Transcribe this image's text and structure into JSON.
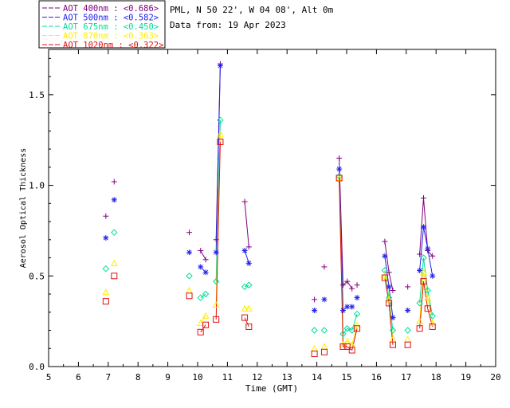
{
  "chart_data": {
    "type": "scatter",
    "title": "PML, N 50 22', W 04 08', Alt 0m",
    "subtitle": "Data from: 19 Apr 2023",
    "xlabel": "Time (GMT)",
    "ylabel": "Aerosol Optical Thickness",
    "xlim": [
      5,
      20
    ],
    "ylim": [
      0,
      1.75
    ],
    "xticks": [
      5,
      6,
      7,
      8,
      9,
      10,
      11,
      12,
      13,
      14,
      15,
      16,
      17,
      18,
      19,
      20
    ],
    "xtick_labels": [
      "5",
      "6",
      "7",
      "8",
      "9",
      "10",
      "11",
      "12",
      "13",
      "14",
      "15",
      "16",
      "17",
      "18",
      "19",
      "20"
    ],
    "yticks": [
      0,
      0.5,
      1.0,
      1.5
    ],
    "ytick_labels": [
      "0.0",
      "0.5",
      "1.0",
      "1.5"
    ],
    "legend_position": "top-left (outside plot)",
    "series": [
      {
        "name": "AOT  400nm : <0.686>",
        "color": "#800080",
        "marker": "plus",
        "points": [
          [
            6.92,
            0.83
          ],
          [
            7.2,
            1.02
          ],
          [
            9.72,
            0.74
          ],
          [
            10.1,
            0.64
          ],
          [
            10.27,
            0.59
          ],
          [
            10.62,
            0.7
          ],
          [
            10.76,
            1.67
          ],
          [
            11.58,
            0.91
          ],
          [
            11.72,
            0.66
          ],
          [
            13.92,
            0.37
          ],
          [
            14.25,
            0.55
          ],
          [
            14.75,
            1.15
          ],
          [
            14.88,
            0.45
          ],
          [
            15.02,
            0.47
          ],
          [
            15.18,
            0.43
          ],
          [
            15.35,
            0.45
          ],
          [
            16.28,
            0.69
          ],
          [
            16.42,
            0.52
          ],
          [
            16.55,
            0.42
          ],
          [
            17.05,
            0.44
          ],
          [
            17.45,
            0.62
          ],
          [
            17.58,
            0.93
          ],
          [
            17.72,
            0.64
          ],
          [
            17.88,
            0.61
          ]
        ],
        "segments": [
          [
            [
              10.1,
              0.64
            ],
            [
              10.27,
              0.59
            ]
          ],
          [
            [
              10.62,
              0.7
            ],
            [
              10.76,
              1.67
            ]
          ],
          [
            [
              11.58,
              0.91
            ],
            [
              11.72,
              0.66
            ]
          ],
          [
            [
              14.75,
              1.15
            ],
            [
              14.88,
              0.45
            ]
          ],
          [
            [
              14.88,
              0.45
            ],
            [
              15.02,
              0.47
            ]
          ],
          [
            [
              15.02,
              0.47
            ],
            [
              15.18,
              0.43
            ]
          ],
          [
            [
              16.28,
              0.69
            ],
            [
              16.42,
              0.52
            ]
          ],
          [
            [
              16.42,
              0.52
            ],
            [
              16.55,
              0.42
            ]
          ],
          [
            [
              17.45,
              0.62
            ],
            [
              17.58,
              0.93
            ]
          ],
          [
            [
              17.58,
              0.93
            ],
            [
              17.72,
              0.64
            ]
          ],
          [
            [
              17.72,
              0.64
            ],
            [
              17.88,
              0.61
            ]
          ]
        ]
      },
      {
        "name": "AOT  500nm : <0.582>",
        "color": "#2222ee",
        "marker": "asterisk",
        "points": [
          [
            6.92,
            0.71
          ],
          [
            7.2,
            0.92
          ],
          [
            9.72,
            0.63
          ],
          [
            10.1,
            0.55
          ],
          [
            10.27,
            0.52
          ],
          [
            10.62,
            0.63
          ],
          [
            10.76,
            1.66
          ],
          [
            11.58,
            0.64
          ],
          [
            11.72,
            0.57
          ],
          [
            13.92,
            0.31
          ],
          [
            14.25,
            0.37
          ],
          [
            14.75,
            1.09
          ],
          [
            14.88,
            0.31
          ],
          [
            15.02,
            0.33
          ],
          [
            15.18,
            0.33
          ],
          [
            15.35,
            0.38
          ],
          [
            16.28,
            0.61
          ],
          [
            16.42,
            0.44
          ],
          [
            16.55,
            0.27
          ],
          [
            17.05,
            0.31
          ],
          [
            17.45,
            0.53
          ],
          [
            17.58,
            0.77
          ],
          [
            17.72,
            0.65
          ],
          [
            17.88,
            0.5
          ]
        ],
        "segments": [
          [
            [
              10.1,
              0.55
            ],
            [
              10.27,
              0.52
            ]
          ],
          [
            [
              10.62,
              0.63
            ],
            [
              10.76,
              1.66
            ]
          ],
          [
            [
              11.58,
              0.64
            ],
            [
              11.72,
              0.57
            ]
          ],
          [
            [
              14.75,
              1.09
            ],
            [
              14.88,
              0.31
            ]
          ],
          [
            [
              14.88,
              0.31
            ],
            [
              15.02,
              0.33
            ]
          ],
          [
            [
              15.02,
              0.33
            ],
            [
              15.18,
              0.33
            ]
          ],
          [
            [
              16.28,
              0.61
            ],
            [
              16.42,
              0.44
            ]
          ],
          [
            [
              16.42,
              0.44
            ],
            [
              16.55,
              0.27
            ]
          ],
          [
            [
              17.45,
              0.53
            ],
            [
              17.58,
              0.77
            ]
          ],
          [
            [
              17.58,
              0.77
            ],
            [
              17.72,
              0.65
            ]
          ],
          [
            [
              17.72,
              0.65
            ],
            [
              17.88,
              0.5
            ]
          ]
        ]
      },
      {
        "name": "AOT  675nm : <0.450>",
        "color": "#00dd99",
        "marker": "diamond",
        "points": [
          [
            6.92,
            0.54
          ],
          [
            7.2,
            0.74
          ],
          [
            9.72,
            0.5
          ],
          [
            10.1,
            0.38
          ],
          [
            10.27,
            0.4
          ],
          [
            10.62,
            0.47
          ],
          [
            10.76,
            1.36
          ],
          [
            11.58,
            0.44
          ],
          [
            11.72,
            0.45
          ],
          [
            13.92,
            0.2
          ],
          [
            14.25,
            0.2
          ],
          [
            14.75,
            1.05
          ],
          [
            14.88,
            0.18
          ],
          [
            15.02,
            0.21
          ],
          [
            15.18,
            0.2
          ],
          [
            15.35,
            0.29
          ],
          [
            16.28,
            0.53
          ],
          [
            16.42,
            0.38
          ],
          [
            16.55,
            0.2
          ],
          [
            17.05,
            0.2
          ],
          [
            17.45,
            0.35
          ],
          [
            17.58,
            0.6
          ],
          [
            17.72,
            0.42
          ],
          [
            17.88,
            0.28
          ]
        ],
        "segments": [
          [
            [
              10.1,
              0.38
            ],
            [
              10.27,
              0.4
            ]
          ],
          [
            [
              10.62,
              0.47
            ],
            [
              10.76,
              1.36
            ]
          ],
          [
            [
              11.58,
              0.44
            ],
            [
              11.72,
              0.45
            ]
          ],
          [
            [
              14.75,
              1.05
            ],
            [
              14.88,
              0.18
            ]
          ],
          [
            [
              14.88,
              0.18
            ],
            [
              15.02,
              0.21
            ]
          ],
          [
            [
              15.02,
              0.21
            ],
            [
              15.18,
              0.2
            ]
          ],
          [
            [
              15.18,
              0.2
            ],
            [
              15.35,
              0.29
            ]
          ],
          [
            [
              16.28,
              0.53
            ],
            [
              16.42,
              0.38
            ]
          ],
          [
            [
              16.42,
              0.38
            ],
            [
              16.55,
              0.2
            ]
          ],
          [
            [
              17.45,
              0.35
            ],
            [
              17.58,
              0.6
            ]
          ],
          [
            [
              17.58,
              0.6
            ],
            [
              17.72,
              0.42
            ]
          ],
          [
            [
              17.72,
              0.42
            ],
            [
              17.88,
              0.28
            ]
          ]
        ]
      },
      {
        "name": "AOT  870nm : <0.363>",
        "color": "#ffee00",
        "marker": "triangle",
        "points": [
          [
            6.92,
            0.41
          ],
          [
            7.2,
            0.57
          ],
          [
            9.72,
            0.42
          ],
          [
            10.1,
            0.24
          ],
          [
            10.27,
            0.28
          ],
          [
            10.62,
            0.34
          ],
          [
            10.76,
            1.28
          ],
          [
            11.58,
            0.32
          ],
          [
            11.72,
            0.32
          ],
          [
            13.92,
            0.1
          ],
          [
            14.25,
            0.11
          ],
          [
            14.75,
            1.04
          ],
          [
            14.88,
            0.12
          ],
          [
            15.02,
            0.14
          ],
          [
            15.18,
            0.12
          ],
          [
            15.35,
            0.23
          ],
          [
            16.28,
            0.5
          ],
          [
            16.42,
            0.37
          ],
          [
            16.55,
            0.15
          ],
          [
            17.05,
            0.15
          ],
          [
            17.45,
            0.25
          ],
          [
            17.58,
            0.52
          ],
          [
            17.72,
            0.38
          ],
          [
            17.88,
            0.24
          ]
        ],
        "segments": [
          [
            [
              10.1,
              0.24
            ],
            [
              10.27,
              0.28
            ]
          ],
          [
            [
              10.62,
              0.34
            ],
            [
              10.76,
              1.28
            ]
          ],
          [
            [
              11.58,
              0.32
            ],
            [
              11.72,
              0.32
            ]
          ],
          [
            [
              14.75,
              1.04
            ],
            [
              14.88,
              0.12
            ]
          ],
          [
            [
              14.88,
              0.12
            ],
            [
              15.02,
              0.14
            ]
          ],
          [
            [
              15.02,
              0.14
            ],
            [
              15.18,
              0.12
            ]
          ],
          [
            [
              15.18,
              0.12
            ],
            [
              15.35,
              0.23
            ]
          ],
          [
            [
              16.28,
              0.5
            ],
            [
              16.42,
              0.37
            ]
          ],
          [
            [
              16.42,
              0.37
            ],
            [
              16.55,
              0.15
            ]
          ],
          [
            [
              17.45,
              0.25
            ],
            [
              17.58,
              0.52
            ]
          ],
          [
            [
              17.58,
              0.52
            ],
            [
              17.72,
              0.38
            ]
          ],
          [
            [
              17.72,
              0.38
            ],
            [
              17.88,
              0.24
            ]
          ]
        ]
      },
      {
        "name": "AOT 1020nm : <0.322>",
        "color": "#dd1111",
        "marker": "square",
        "points": [
          [
            6.92,
            0.36
          ],
          [
            7.2,
            0.5
          ],
          [
            9.72,
            0.39
          ],
          [
            10.1,
            0.19
          ],
          [
            10.27,
            0.23
          ],
          [
            10.62,
            0.26
          ],
          [
            10.76,
            1.24
          ],
          [
            11.58,
            0.27
          ],
          [
            11.72,
            0.22
          ],
          [
            13.92,
            0.07
          ],
          [
            14.25,
            0.08
          ],
          [
            14.75,
            1.04
          ],
          [
            14.88,
            0.11
          ],
          [
            15.02,
            0.11
          ],
          [
            15.18,
            0.09
          ],
          [
            15.35,
            0.21
          ],
          [
            16.28,
            0.49
          ],
          [
            16.42,
            0.35
          ],
          [
            16.55,
            0.12
          ],
          [
            17.05,
            0.12
          ],
          [
            17.45,
            0.21
          ],
          [
            17.58,
            0.47
          ],
          [
            17.72,
            0.32
          ],
          [
            17.88,
            0.22
          ]
        ],
        "segments": [
          [
            [
              10.1,
              0.19
            ],
            [
              10.27,
              0.23
            ]
          ],
          [
            [
              10.62,
              0.26
            ],
            [
              10.76,
              1.24
            ]
          ],
          [
            [
              11.58,
              0.27
            ],
            [
              11.72,
              0.22
            ]
          ],
          [
            [
              14.75,
              1.04
            ],
            [
              14.88,
              0.11
            ]
          ],
          [
            [
              14.88,
              0.11
            ],
            [
              15.02,
              0.11
            ]
          ],
          [
            [
              15.02,
              0.11
            ],
            [
              15.18,
              0.09
            ]
          ],
          [
            [
              15.18,
              0.09
            ],
            [
              15.35,
              0.21
            ]
          ],
          [
            [
              16.28,
              0.49
            ],
            [
              16.42,
              0.35
            ]
          ],
          [
            [
              16.42,
              0.35
            ],
            [
              16.55,
              0.12
            ]
          ],
          [
            [
              17.45,
              0.21
            ],
            [
              17.58,
              0.47
            ]
          ],
          [
            [
              17.58,
              0.47
            ],
            [
              17.72,
              0.32
            ]
          ],
          [
            [
              17.72,
              0.32
            ],
            [
              17.88,
              0.22
            ]
          ]
        ]
      }
    ]
  }
}
